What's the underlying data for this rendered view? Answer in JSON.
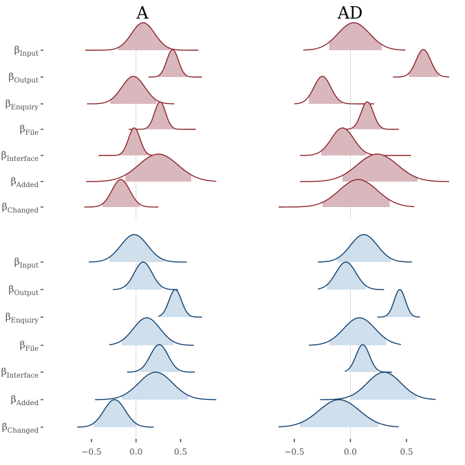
{
  "chart_data": {
    "type": "ridgeline-density",
    "panel_titles": [
      "A",
      "AD"
    ],
    "parameter_symbol": "β",
    "parameters": [
      "Input",
      "Output",
      "Enquiry",
      "File",
      "Interface",
      "Added",
      "Changed"
    ],
    "x_ticks": [
      -0.5,
      0.0,
      0.5
    ],
    "x_tick_labels": [
      "−0.5",
      "0.0",
      "0.5"
    ],
    "reference_line": 0,
    "grid": false,
    "colors": {
      "red_fill": "#d9b8bd",
      "red_line": "#8b2127",
      "blue_fill": "#cfdfeb",
      "blue_line": "#0d3d6e",
      "zero_line": "#d9d9d9",
      "tick_mark": "#4d4d4d"
    },
    "groups": [
      {
        "color": "red",
        "panels": [
          {
            "title": "A",
            "xlim": [
              -0.7,
              0.92
            ],
            "densities": [
              {
                "parameter": "Input",
                "mean": 0.08,
                "sd": 0.13,
                "range": [
                  -0.57,
                  0.7
                ],
                "interval": [
                  -0.2,
                  0.38
                ]
              },
              {
                "parameter": "Output",
                "mean": 0.41,
                "sd": 0.065,
                "range": [
                  0.14,
                  0.74
                ],
                "interval": [
                  0.24,
                  0.57
                ]
              },
              {
                "parameter": "Enquiry",
                "mean": -0.03,
                "sd": 0.13,
                "range": [
                  -0.55,
                  0.43
                ],
                "interval": [
                  -0.29,
                  0.23
                ]
              },
              {
                "parameter": "File",
                "mean": 0.27,
                "sd": 0.062,
                "range": [
                  -0.08,
                  0.67
                ],
                "interval": [
                  0.12,
                  0.44
                ]
              },
              {
                "parameter": "Interface",
                "mean": -0.02,
                "sd": 0.065,
                "range": [
                  -0.42,
                  0.3
                ],
                "interval": [
                  -0.2,
                  0.15
                ]
              },
              {
                "parameter": "Added",
                "mean": 0.25,
                "sd": 0.22,
                "range": [
                  -0.56,
                  0.9
                ],
                "interval": [
                  -0.12,
                  0.62
                ]
              },
              {
                "parameter": "Changed",
                "mean": -0.17,
                "sd": 0.1,
                "range": [
                  -0.58,
                  0.25
                ],
                "interval": [
                  -0.38,
                  0.04
                ]
              }
            ]
          },
          {
            "title": "AD",
            "xlim": [
              -0.64,
              0.88
            ],
            "densities": [
              {
                "parameter": "Input",
                "mean": 0.03,
                "sd": 0.14,
                "range": [
                  -0.42,
                  0.49
                ],
                "interval": [
                  -0.19,
                  0.28
                ]
              },
              {
                "parameter": "Output",
                "mean": 0.65,
                "sd": 0.065,
                "range": [
                  0.38,
                  0.88
                ],
                "interval": [
                  0.52,
                  0.79
                ]
              },
              {
                "parameter": "Enquiry",
                "mean": -0.25,
                "sd": 0.075,
                "range": [
                  -0.5,
                  0.21
                ],
                "interval": [
                  -0.37,
                  -0.07
                ]
              },
              {
                "parameter": "File",
                "mean": 0.15,
                "sd": 0.055,
                "range": [
                  -0.09,
                  0.43
                ],
                "interval": [
                  0.02,
                  0.29
                ]
              },
              {
                "parameter": "Interface",
                "mean": -0.07,
                "sd": 0.1,
                "range": [
                  -0.45,
                  0.54
                ],
                "interval": [
                  -0.26,
                  0.14
                ]
              },
              {
                "parameter": "Added",
                "mean": 0.24,
                "sd": 0.18,
                "range": [
                  -0.45,
                  0.88
                ],
                "interval": [
                  -0.07,
                  0.6
                ]
              },
              {
                "parameter": "Changed",
                "mean": 0.07,
                "sd": 0.17,
                "range": [
                  -0.64,
                  0.57
                ],
                "interval": [
                  -0.25,
                  0.35
                ]
              }
            ]
          }
        ]
      },
      {
        "color": "blue",
        "panels": [
          {
            "title": "A",
            "xlim": [
              -0.7,
              0.92
            ],
            "densities": [
              {
                "parameter": "Input",
                "mean": -0.02,
                "sd": 0.15,
                "range": [
                  -0.53,
                  0.57
                ],
                "interval": [
                  -0.3,
                  0.31
                ]
              },
              {
                "parameter": "Output",
                "mean": 0.08,
                "sd": 0.1,
                "range": [
                  -0.26,
                  0.47
                ],
                "interval": [
                  -0.12,
                  0.29
                ]
              },
              {
                "parameter": "Enquiry",
                "mean": 0.44,
                "sd": 0.07,
                "range": [
                  0.25,
                  0.74
                ],
                "interval": [
                  0.27,
                  0.62
                ]
              },
              {
                "parameter": "File",
                "mean": 0.12,
                "sd": 0.15,
                "range": [
                  -0.3,
                  0.65
                ],
                "interval": [
                  -0.16,
                  0.42
                ]
              },
              {
                "parameter": "Interface",
                "mean": 0.26,
                "sd": 0.1,
                "range": [
                  -0.1,
                  0.66
                ],
                "interval": [
                  0.05,
                  0.48
                ]
              },
              {
                "parameter": "Added",
                "mean": 0.22,
                "sd": 0.19,
                "range": [
                  -0.46,
                  0.9
                ],
                "interval": [
                  -0.16,
                  0.59
                ]
              },
              {
                "parameter": "Changed",
                "mean": -0.24,
                "sd": 0.12,
                "range": [
                  -0.66,
                  0.2
                ],
                "interval": [
                  -0.48,
                  0.0
                ]
              }
            ]
          },
          {
            "title": "AD",
            "xlim": [
              -0.64,
              0.88
            ],
            "densities": [
              {
                "parameter": "Input",
                "mean": 0.12,
                "sd": 0.12,
                "range": [
                  -0.29,
                  0.55
                ],
                "interval": [
                  -0.12,
                  0.36
                ]
              },
              {
                "parameter": "Output",
                "mean": -0.04,
                "sd": 0.09,
                "range": [
                  -0.29,
                  0.3
                ],
                "interval": [
                  -0.21,
                  0.14
                ]
              },
              {
                "parameter": "Enquiry",
                "mean": 0.44,
                "sd": 0.05,
                "range": [
                  0.24,
                  0.62
                ],
                "interval": [
                  0.32,
                  0.56
                ]
              },
              {
                "parameter": "File",
                "mean": 0.08,
                "sd": 0.14,
                "range": [
                  -0.37,
                  0.45
                ],
                "interval": [
                  -0.19,
                  0.32
                ]
              },
              {
                "parameter": "Interface",
                "mean": 0.11,
                "sd": 0.06,
                "range": [
                  -0.05,
                  0.37
                ],
                "interval": [
                  -0.01,
                  0.24
                ]
              },
              {
                "parameter": "Added",
                "mean": 0.3,
                "sd": 0.15,
                "range": [
                  -0.27,
                  0.76
                ],
                "interval": [
                  0.0,
                  0.59
                ]
              },
              {
                "parameter": "Changed",
                "mean": -0.1,
                "sd": 0.18,
                "range": [
                  -0.64,
                  0.43
                ],
                "interval": [
                  -0.45,
                  0.25
                ]
              }
            ]
          }
        ]
      }
    ]
  }
}
